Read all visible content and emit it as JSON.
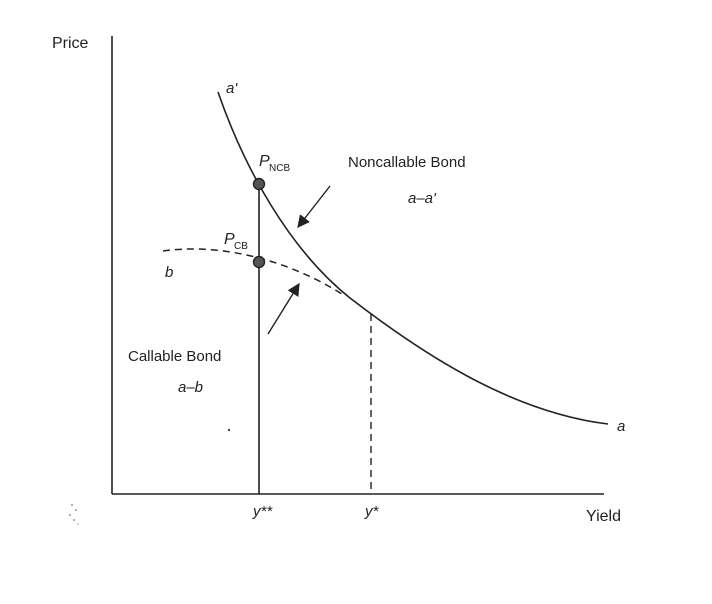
{
  "axes": {
    "y_label": "Price",
    "x_label": "Yield"
  },
  "curves": {
    "noncallable_start_label": "a'",
    "noncallable_end_label": "a",
    "callable_start_label": "b"
  },
  "points": {
    "p_ncb": {
      "main": "P",
      "sub": "NCB"
    },
    "p_cb": {
      "main": "P",
      "sub": "CB"
    }
  },
  "annotations": {
    "noncallable_title": "Noncallable Bond",
    "noncallable_range": "a–a'",
    "callable_title": "Callable Bond",
    "callable_range": "a–b"
  },
  "ticks": {
    "y_double_star": "y**",
    "y_star": "y*"
  },
  "colors": {
    "ink": "#222222",
    "point_fill": "#555555"
  }
}
